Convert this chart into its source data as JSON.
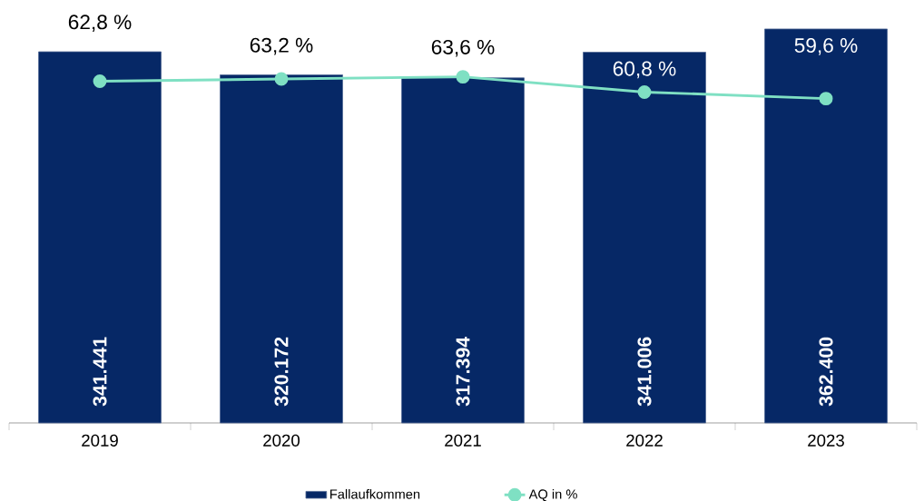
{
  "chart_data": {
    "type": "bar",
    "categories": [
      "2019",
      "2020",
      "2021",
      "2022",
      "2023"
    ],
    "series": [
      {
        "name": "Fallaufkommen",
        "type": "bar",
        "color": "#062866",
        "values": [
          341441,
          320172,
          317394,
          341006,
          362400
        ],
        "value_labels": [
          "341.441",
          "320.172",
          "317.394",
          "341.006",
          "362.400"
        ]
      },
      {
        "name": "AQ in %",
        "type": "line",
        "axis": "y2",
        "color": "#7fe0c3",
        "marker": "circle",
        "line_style": "solid",
        "values": [
          62.8,
          63.2,
          63.6,
          60.8,
          59.6
        ],
        "value_labels": [
          "62,8 %",
          "63,2 %",
          "63,6 %",
          "60,8 %",
          "59,6 %"
        ]
      }
    ],
    "legend": "bottom"
  }
}
